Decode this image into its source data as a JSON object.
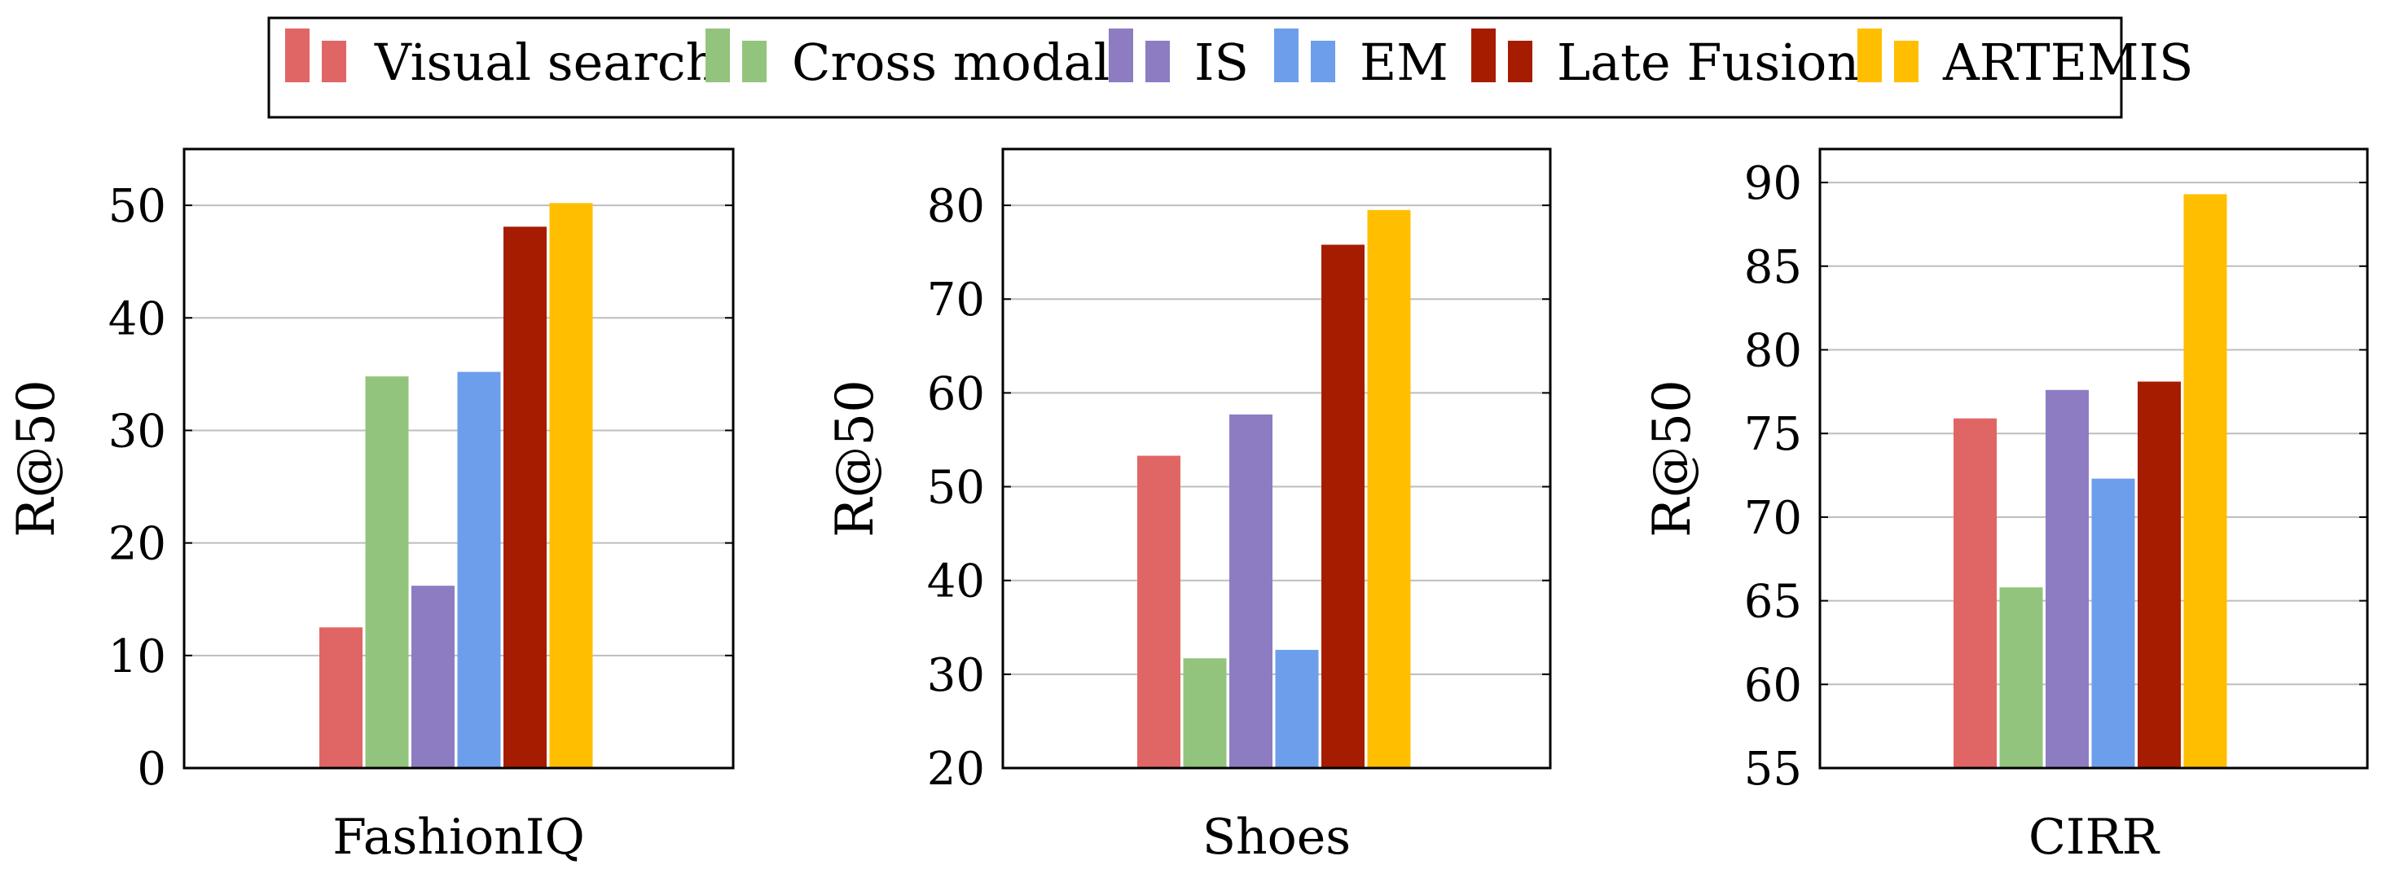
{
  "legend": {
    "placement": "top-center",
    "entries": [
      {
        "name": "Visual search",
        "color": "#e06666"
      },
      {
        "name": "Cross modal",
        "color": "#93c47d"
      },
      {
        "name": "IS",
        "color": "#8e7cc3"
      },
      {
        "name": "EM",
        "color": "#6d9eeb"
      },
      {
        "name": "Late Fusion",
        "color": "#a61c00"
      },
      {
        "name": "ARTEMIS",
        "color": "#ffbf00"
      }
    ]
  },
  "chart_data": [
    {
      "type": "bar",
      "categories": [
        "FashionIQ"
      ],
      "xlabel": "FashionIQ",
      "ylabel": "R@50",
      "ylim": [
        0,
        55
      ],
      "yticks": [
        0,
        10,
        20,
        30,
        40,
        50
      ],
      "grid": true,
      "series": [
        {
          "name": "Visual search",
          "values": [
            12.5
          ]
        },
        {
          "name": "Cross modal",
          "values": [
            34.8
          ]
        },
        {
          "name": "IS",
          "values": [
            16.2
          ]
        },
        {
          "name": "EM",
          "values": [
            35.2
          ]
        },
        {
          "name": "Late Fusion",
          "values": [
            48.1
          ]
        },
        {
          "name": "ARTEMIS",
          "values": [
            50.2
          ]
        }
      ]
    },
    {
      "type": "bar",
      "categories": [
        "Shoes"
      ],
      "xlabel": "Shoes",
      "ylabel": "R@50",
      "ylim": [
        20,
        86
      ],
      "yticks": [
        20,
        30,
        40,
        50,
        60,
        70,
        80
      ],
      "grid": true,
      "series": [
        {
          "name": "Visual search",
          "values": [
            53.3
          ]
        },
        {
          "name": "Cross modal",
          "values": [
            31.7
          ]
        },
        {
          "name": "IS",
          "values": [
            57.7
          ]
        },
        {
          "name": "EM",
          "values": [
            32.6
          ]
        },
        {
          "name": "Late Fusion",
          "values": [
            75.8
          ]
        },
        {
          "name": "ARTEMIS",
          "values": [
            79.5
          ]
        }
      ]
    },
    {
      "type": "bar",
      "categories": [
        "CIRR"
      ],
      "xlabel": "CIRR",
      "ylabel": "R@50",
      "ylim": [
        55,
        92
      ],
      "yticks": [
        55,
        60,
        65,
        70,
        75,
        80,
        85,
        90
      ],
      "grid": true,
      "series": [
        {
          "name": "Visual search",
          "values": [
            75.9
          ]
        },
        {
          "name": "Cross modal",
          "values": [
            65.8
          ]
        },
        {
          "name": "IS",
          "values": [
            77.6
          ]
        },
        {
          "name": "EM",
          "values": [
            72.3
          ]
        },
        {
          "name": "Late Fusion",
          "values": [
            78.1
          ]
        },
        {
          "name": "ARTEMIS",
          "values": [
            89.3
          ]
        }
      ]
    }
  ]
}
